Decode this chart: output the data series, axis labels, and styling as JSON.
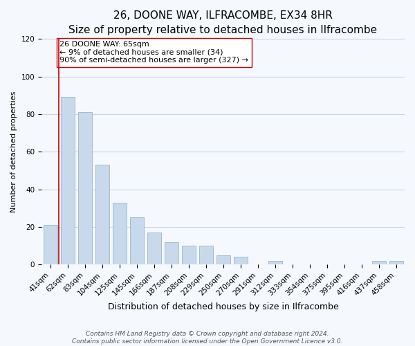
{
  "title": "26, DOONE WAY, ILFRACOMBE, EX34 8HR",
  "subtitle": "Size of property relative to detached houses in Ilfracombe",
  "xlabel": "Distribution of detached houses by size in Ilfracombe",
  "ylabel": "Number of detached properties",
  "bar_labels": [
    "41sqm",
    "62sqm",
    "83sqm",
    "104sqm",
    "125sqm",
    "145sqm",
    "166sqm",
    "187sqm",
    "208sqm",
    "229sqm",
    "250sqm",
    "270sqm",
    "291sqm",
    "312sqm",
    "333sqm",
    "354sqm",
    "375sqm",
    "395sqm",
    "416sqm",
    "437sqm",
    "458sqm"
  ],
  "bar_values": [
    21,
    89,
    81,
    53,
    33,
    25,
    17,
    12,
    10,
    10,
    5,
    4,
    0,
    2,
    0,
    0,
    0,
    0,
    0,
    2,
    2
  ],
  "bar_color": "#c8d9ec",
  "bar_edge_color": "#9ab4d0",
  "vline_color": "#cc0000",
  "annotation_text": "26 DOONE WAY: 65sqm\n← 9% of detached houses are smaller (34)\n90% of semi-detached houses are larger (327) →",
  "annotation_box_facecolor": "#ffffff",
  "annotation_box_edgecolor": "#cc0000",
  "ylim": [
    0,
    120
  ],
  "yticks": [
    0,
    20,
    40,
    60,
    80,
    100,
    120
  ],
  "footer_line1": "Contains HM Land Registry data © Crown copyright and database right 2024.",
  "footer_line2": "Contains public sector information licensed under the Open Government Licence v3.0.",
  "grid_color": "#c8d4e4",
  "title_fontsize": 11,
  "subtitle_fontsize": 9.5,
  "xlabel_fontsize": 9,
  "ylabel_fontsize": 8,
  "tick_fontsize": 7.5,
  "annotation_fontsize": 8,
  "footer_fontsize": 6.5,
  "bg_color": "#f5f8fd"
}
